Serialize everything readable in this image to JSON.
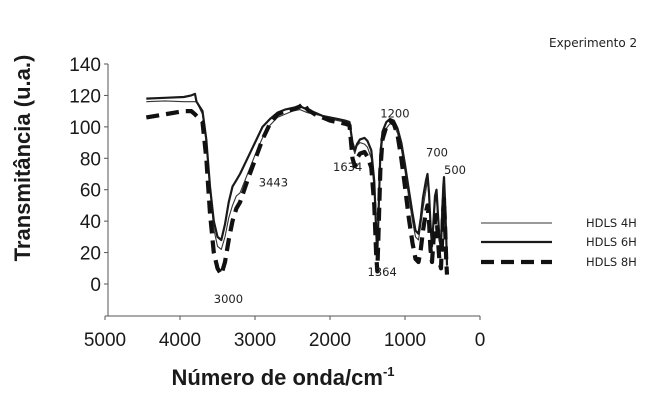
{
  "chart_data": {
    "type": "line",
    "title": "",
    "annotation_corner": "Experimento 2",
    "xlabel": "Número de onda/cm",
    "xlabel_sup": "-1",
    "ylabel": "Transmitância (u.a.)",
    "xlim": [
      5000,
      0
    ],
    "ylim": [
      -20,
      140
    ],
    "x_ticks": [
      5000,
      4000,
      3000,
      2000,
      1000,
      0
    ],
    "y_ticks": [
      0,
      20,
      40,
      60,
      80,
      100,
      120,
      140
    ],
    "grid": false,
    "legend_position": "right",
    "series": [
      {
        "name": "HDLS 4H",
        "style": "thin",
        "points": [
          [
            4450,
            116
          ],
          [
            4200,
            116.5
          ],
          [
            3950,
            116
          ],
          [
            3780,
            116
          ],
          [
            3700,
            108
          ],
          [
            3650,
            90
          ],
          [
            3600,
            60
          ],
          [
            3550,
            35
          ],
          [
            3500,
            24
          ],
          [
            3450,
            22
          ],
          [
            3400,
            30
          ],
          [
            3350,
            42
          ],
          [
            3300,
            50
          ],
          [
            3250,
            56
          ],
          [
            3200,
            58
          ],
          [
            3100,
            70
          ],
          [
            3000,
            82
          ],
          [
            2900,
            93
          ],
          [
            2800,
            101
          ],
          [
            2700,
            106
          ],
          [
            2600,
            108
          ],
          [
            2500,
            110
          ],
          [
            2400,
            111
          ],
          [
            2300,
            109
          ],
          [
            2200,
            108
          ],
          [
            2100,
            107
          ],
          [
            2000,
            105
          ],
          [
            1900,
            104
          ],
          [
            1800,
            103
          ],
          [
            1740,
            103
          ],
          [
            1700,
            88
          ],
          [
            1670,
            83
          ],
          [
            1640,
            88
          ],
          [
            1600,
            90
          ],
          [
            1540,
            89
          ],
          [
            1500,
            87
          ],
          [
            1450,
            80
          ],
          [
            1410,
            60
          ],
          [
            1385,
            30
          ],
          [
            1370,
            16
          ],
          [
            1355,
            40
          ],
          [
            1330,
            78
          ],
          [
            1300,
            92
          ],
          [
            1250,
            99
          ],
          [
            1200,
            102
          ],
          [
            1150,
            101
          ],
          [
            1100,
            96
          ],
          [
            1050,
            86
          ],
          [
            1000,
            72
          ],
          [
            950,
            55
          ],
          [
            900,
            40
          ],
          [
            860,
            30
          ],
          [
            820,
            28
          ],
          [
            790,
            38
          ],
          [
            760,
            48
          ],
          [
            720,
            60
          ],
          [
            700,
            66
          ],
          [
            680,
            55
          ],
          [
            660,
            35
          ],
          [
            640,
            23
          ],
          [
            620,
            38
          ],
          [
            600,
            52
          ],
          [
            580,
            55
          ],
          [
            560,
            40
          ],
          [
            540,
            26
          ],
          [
            520,
            22
          ],
          [
            505,
            40
          ],
          [
            490,
            60
          ],
          [
            480,
            66
          ],
          [
            465,
            50
          ],
          [
            450,
            25
          ],
          [
            440,
            10
          ]
        ]
      },
      {
        "name": "HDLS 6H",
        "style": "solid",
        "points": [
          [
            4450,
            118
          ],
          [
            4200,
            118.5
          ],
          [
            3950,
            119
          ],
          [
            3850,
            120
          ],
          [
            3800,
            121
          ],
          [
            3780,
            116
          ],
          [
            3700,
            110
          ],
          [
            3650,
            92
          ],
          [
            3600,
            62
          ],
          [
            3550,
            40
          ],
          [
            3500,
            30
          ],
          [
            3450,
            28
          ],
          [
            3400,
            38
          ],
          [
            3350,
            52
          ],
          [
            3300,
            62
          ],
          [
            3250,
            66
          ],
          [
            3200,
            70
          ],
          [
            3100,
            80
          ],
          [
            3000,
            90
          ],
          [
            2900,
            100
          ],
          [
            2800,
            105
          ],
          [
            2700,
            109
          ],
          [
            2600,
            111
          ],
          [
            2500,
            112
          ],
          [
            2400,
            113
          ],
          [
            2300,
            111
          ],
          [
            2200,
            109
          ],
          [
            2100,
            107
          ],
          [
            2000,
            106
          ],
          [
            1900,
            105
          ],
          [
            1800,
            104
          ],
          [
            1740,
            103
          ],
          [
            1700,
            90
          ],
          [
            1670,
            85
          ],
          [
            1640,
            89
          ],
          [
            1600,
            92
          ],
          [
            1540,
            93
          ],
          [
            1500,
            91
          ],
          [
            1450,
            85
          ],
          [
            1410,
            65
          ],
          [
            1385,
            35
          ],
          [
            1370,
            19
          ],
          [
            1355,
            42
          ],
          [
            1330,
            82
          ],
          [
            1300,
            97
          ],
          [
            1250,
            103
          ],
          [
            1200,
            105
          ],
          [
            1150,
            104
          ],
          [
            1100,
            99
          ],
          [
            1050,
            90
          ],
          [
            1000,
            76
          ],
          [
            950,
            60
          ],
          [
            900,
            45
          ],
          [
            860,
            34
          ],
          [
            820,
            32
          ],
          [
            790,
            42
          ],
          [
            760,
            55
          ],
          [
            720,
            66
          ],
          [
            700,
            70
          ],
          [
            680,
            58
          ],
          [
            660,
            38
          ],
          [
            640,
            24
          ],
          [
            620,
            40
          ],
          [
            600,
            56
          ],
          [
            580,
            60
          ],
          [
            560,
            44
          ],
          [
            540,
            28
          ],
          [
            520,
            24
          ],
          [
            505,
            44
          ],
          [
            490,
            62
          ],
          [
            480,
            68
          ],
          [
            465,
            52
          ],
          [
            450,
            28
          ],
          [
            440,
            12
          ]
        ]
      },
      {
        "name": "HDLS 8H",
        "style": "dashed",
        "points": [
          [
            4450,
            106
          ],
          [
            4200,
            108
          ],
          [
            3950,
            110
          ],
          [
            3850,
            110
          ],
          [
            3800,
            108
          ],
          [
            3780,
            107
          ],
          [
            3700,
            103
          ],
          [
            3650,
            80
          ],
          [
            3600,
            45
          ],
          [
            3550,
            20
          ],
          [
            3500,
            10
          ],
          [
            3450,
            6
          ],
          [
            3400,
            14
          ],
          [
            3350,
            28
          ],
          [
            3300,
            40
          ],
          [
            3250,
            48
          ],
          [
            3200,
            52
          ],
          [
            3100,
            66
          ],
          [
            3000,
            79
          ],
          [
            2900,
            92
          ],
          [
            2800,
            102
          ],
          [
            2700,
            108
          ],
          [
            2600,
            110
          ],
          [
            2500,
            111
          ],
          [
            2400,
            113
          ],
          [
            2350,
            115
          ],
          [
            2300,
            111
          ],
          [
            2200,
            108
          ],
          [
            2100,
            106
          ],
          [
            2000,
            104
          ],
          [
            1900,
            103
          ],
          [
            1800,
            102
          ],
          [
            1740,
            101
          ],
          [
            1700,
            80
          ],
          [
            1670,
            75
          ],
          [
            1640,
            80
          ],
          [
            1600,
            83
          ],
          [
            1540,
            84
          ],
          [
            1500,
            81
          ],
          [
            1450,
            74
          ],
          [
            1410,
            50
          ],
          [
            1385,
            20
          ],
          [
            1370,
            8
          ],
          [
            1355,
            30
          ],
          [
            1330,
            72
          ],
          [
            1300,
            92
          ],
          [
            1250,
            100
          ],
          [
            1200,
            104
          ],
          [
            1150,
            102
          ],
          [
            1100,
            95
          ],
          [
            1050,
            80
          ],
          [
            1000,
            62
          ],
          [
            950,
            42
          ],
          [
            900,
            26
          ],
          [
            860,
            16
          ],
          [
            820,
            14
          ],
          [
            790,
            22
          ],
          [
            760,
            34
          ],
          [
            720,
            46
          ],
          [
            700,
            50
          ],
          [
            680,
            40
          ],
          [
            660,
            22
          ],
          [
            640,
            14
          ],
          [
            620,
            28
          ],
          [
            600,
            40
          ],
          [
            580,
            44
          ],
          [
            560,
            28
          ],
          [
            540,
            14
          ],
          [
            520,
            10
          ],
          [
            505,
            28
          ],
          [
            490,
            48
          ],
          [
            480,
            54
          ],
          [
            465,
            36
          ],
          [
            450,
            14
          ],
          [
            440,
            6
          ]
        ]
      }
    ],
    "peak_labels": [
      {
        "text": "3000",
        "x": 3550,
        "y": -12
      },
      {
        "text": "3443",
        "x": 2950,
        "y": 62
      },
      {
        "text": "1634",
        "x": 1960,
        "y": 72
      },
      {
        "text": "1200",
        "x": 1330,
        "y": 106
      },
      {
        "text": "1364",
        "x": 1500,
        "y": 5
      },
      {
        "text": "700",
        "x": 720,
        "y": 81
      },
      {
        "text": "500",
        "x": 480,
        "y": 70
      }
    ]
  }
}
